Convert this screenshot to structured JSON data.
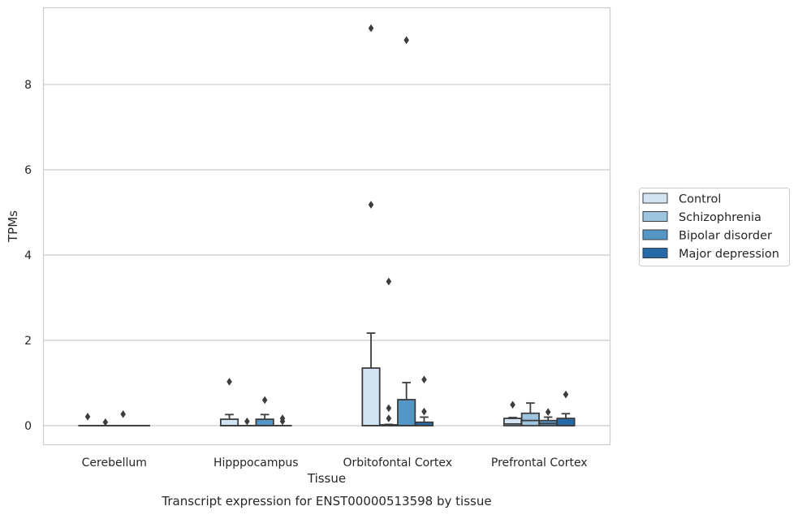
{
  "chart_data": {
    "type": "box",
    "title": "Transcript expression for ENST00000513598 by tissue",
    "xlabel": "Tissue",
    "ylabel": "TPMs",
    "ylim": [
      -0.45,
      9.8
    ],
    "yticks": [
      0,
      2,
      4,
      6,
      8
    ],
    "grid": "horizontal",
    "legend_position": "right",
    "categories": [
      "Cerebellum",
      "Hipppocampus",
      "Orbitofontal Cortex",
      "Prefrontal Cortex"
    ],
    "series": [
      {
        "name": "Control",
        "color": "#d4e3f2",
        "boxes": [
          {
            "q1": 0,
            "median": 0,
            "q3": 0,
            "whisker_low": 0,
            "whisker_high": 0,
            "outliers": [
              0.21
            ]
          },
          {
            "q1": 0,
            "median": 0,
            "q3": 0.15,
            "whisker_low": 0,
            "whisker_high": 0.26,
            "outliers": [
              1.03
            ]
          },
          {
            "q1": 0,
            "median": 0,
            "q3": 1.35,
            "whisker_low": 0,
            "whisker_high": 2.17,
            "outliers": [
              5.18,
              9.32
            ]
          },
          {
            "q1": 0,
            "median": 0.04,
            "q3": 0.17,
            "whisker_low": 0,
            "whisker_high": 0.19,
            "outliers": [
              0.49
            ]
          }
        ]
      },
      {
        "name": "Schizophrenia",
        "color": "#9ec5e0",
        "boxes": [
          {
            "q1": 0,
            "median": 0,
            "q3": 0,
            "whisker_low": 0,
            "whisker_high": 0,
            "outliers": [
              0.08
            ]
          },
          {
            "q1": 0,
            "median": 0,
            "q3": 0,
            "whisker_low": 0,
            "whisker_high": 0,
            "outliers": [
              0.1
            ]
          },
          {
            "q1": 0,
            "median": 0,
            "q3": 0.02,
            "whisker_low": 0,
            "whisker_high": 0.03,
            "outliers": [
              3.38,
              0.41,
              0.17
            ]
          },
          {
            "q1": 0,
            "median": 0.12,
            "q3": 0.29,
            "whisker_low": 0,
            "whisker_high": 0.53,
            "outliers": []
          }
        ]
      },
      {
        "name": "Bipolar disorder",
        "color": "#5497c6",
        "boxes": [
          {
            "q1": 0,
            "median": 0,
            "q3": 0,
            "whisker_low": 0,
            "whisker_high": 0,
            "outliers": [
              0.27
            ]
          },
          {
            "q1": 0,
            "median": 0,
            "q3": 0.15,
            "whisker_low": 0,
            "whisker_high": 0.26,
            "outliers": [
              0.6
            ]
          },
          {
            "q1": 0,
            "median": 0,
            "q3": 0.61,
            "whisker_low": 0,
            "whisker_high": 1.01,
            "outliers": [
              9.04
            ]
          },
          {
            "q1": 0,
            "median": 0.05,
            "q3": 0.12,
            "whisker_low": 0,
            "whisker_high": 0.2,
            "outliers": [
              0.32
            ]
          }
        ]
      },
      {
        "name": "Major depression",
        "color": "#2569a8",
        "boxes": [
          {
            "q1": 0,
            "median": 0,
            "q3": 0,
            "whisker_low": 0,
            "whisker_high": 0,
            "outliers": []
          },
          {
            "q1": 0,
            "median": 0,
            "q3": 0,
            "whisker_low": 0,
            "whisker_high": 0,
            "outliers": [
              0.1,
              0.17
            ]
          },
          {
            "q1": 0,
            "median": 0,
            "q3": 0.08,
            "whisker_low": 0,
            "whisker_high": 0.2,
            "outliers": [
              1.08,
              0.33
            ]
          },
          {
            "q1": 0,
            "median": 0,
            "q3": 0.17,
            "whisker_low": 0,
            "whisker_high": 0.28,
            "outliers": [
              0.73
            ]
          }
        ]
      }
    ]
  }
}
